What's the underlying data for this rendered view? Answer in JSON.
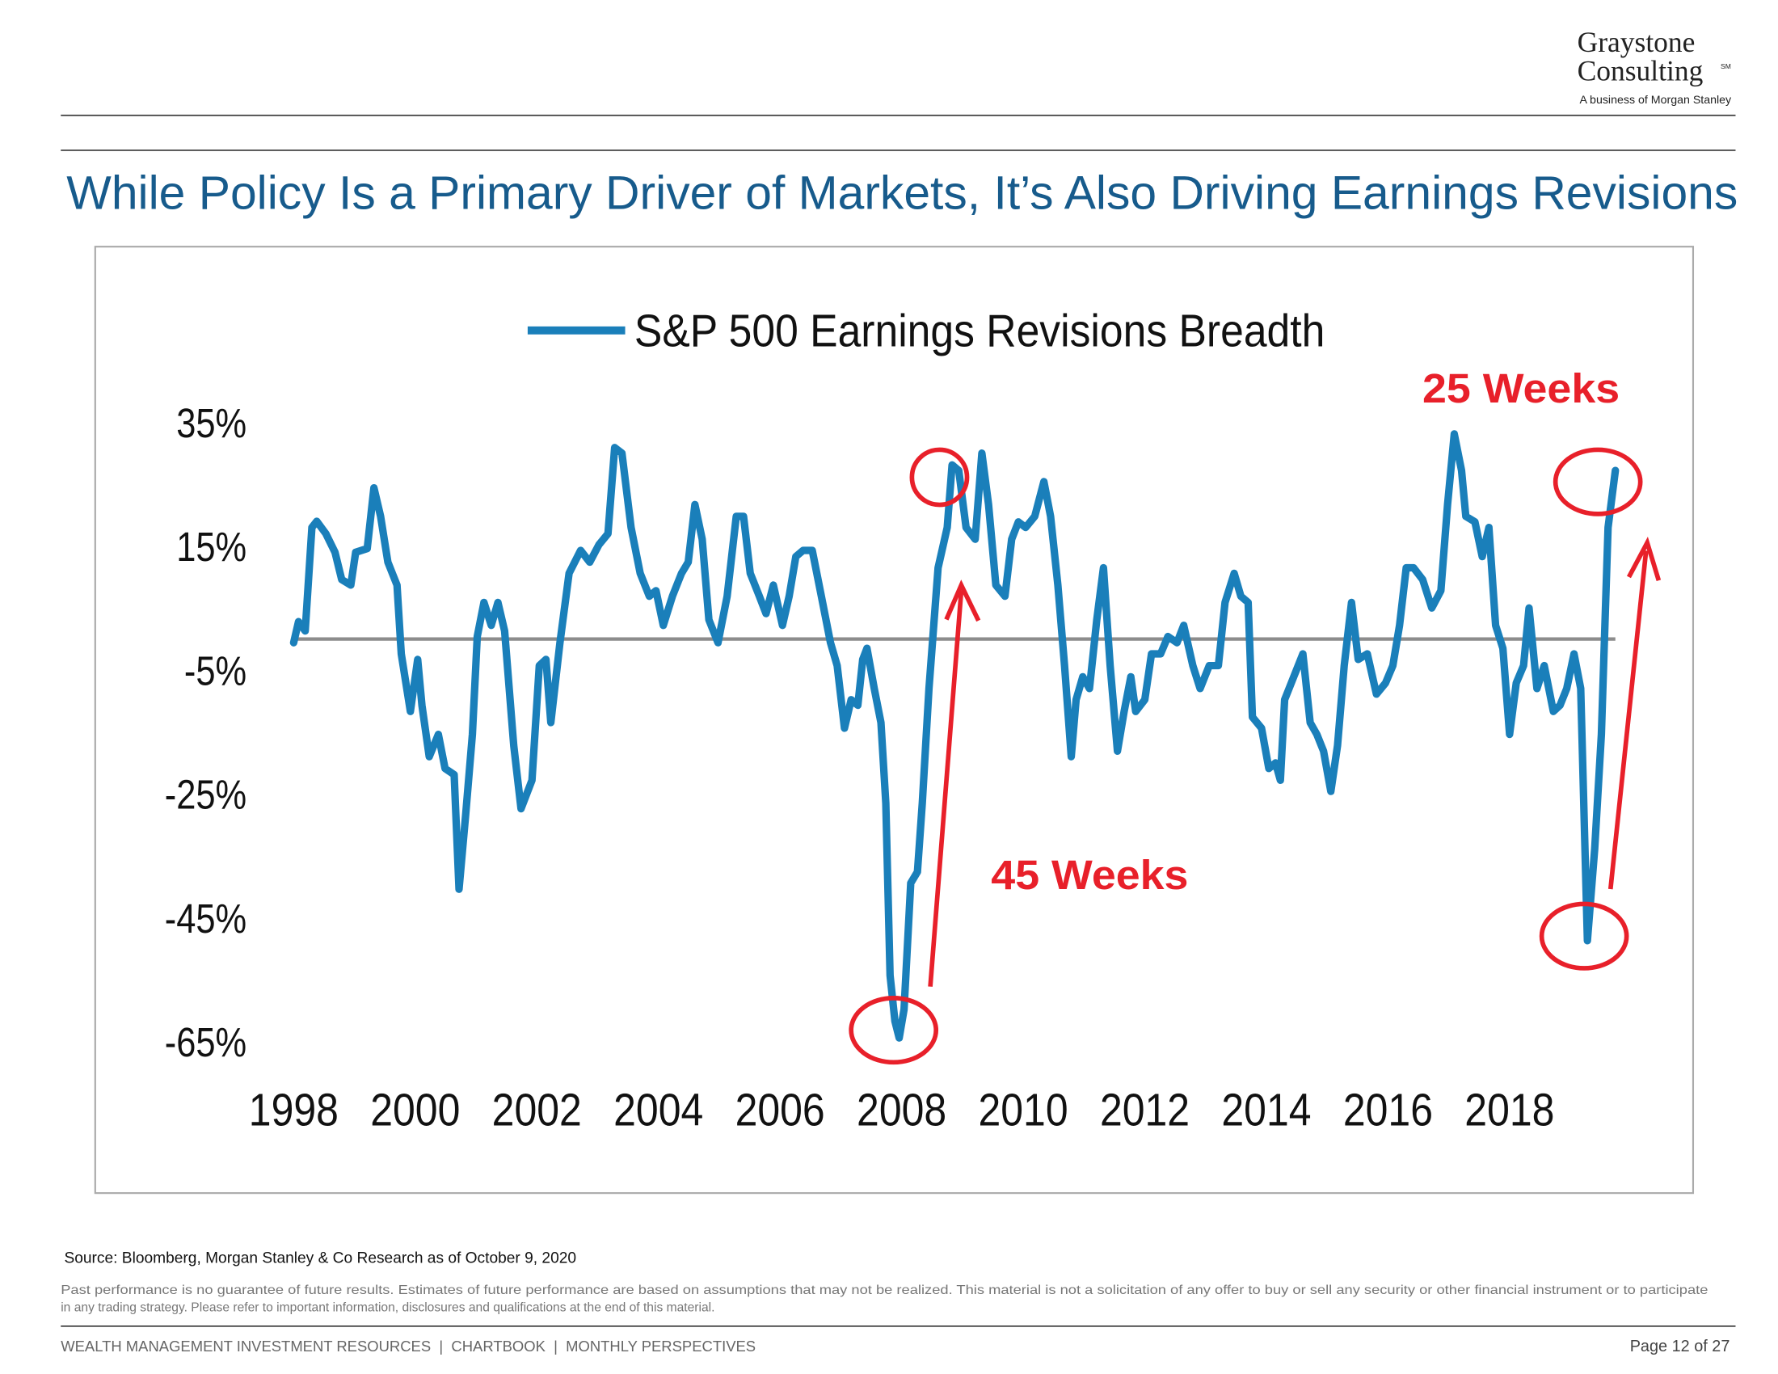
{
  "header": {
    "logo_line1": "Graystone",
    "logo_line2": "Consulting",
    "logo_mark": "SM",
    "logo_tagline": "A business of Morgan Stanley"
  },
  "title": "While Policy Is a Primary Driver of Markets, It’s Also Driving Earnings Revisions",
  "chart_data": {
    "type": "line",
    "series": [
      {
        "name": "S&P 500 Earnings Revisions Breadth",
        "color": "#1a7fba",
        "values": [
          -0.6,
          2.8,
          1.3,
          18,
          19,
          17,
          14,
          9.6,
          8.7,
          14,
          14.6,
          24.4,
          19.8,
          12.4,
          8.7,
          -2.4,
          -11.7,
          -3.3,
          -10.7,
          -19,
          -15.4,
          -20.9,
          -21.9,
          -40.4,
          -28.3,
          -15.4,
          0.4,
          5.9,
          2.2,
          5.9,
          1.3,
          -17.2,
          -27.4,
          -22.8,
          -4.3,
          -3.3,
          -13.5,
          -0.6,
          10.6,
          14.3,
          12.4,
          15.2,
          17,
          30.9,
          30,
          18,
          10.6,
          6.9,
          7.8,
          2.2,
          6.9,
          10.6,
          12.4,
          21.7,
          16.1,
          3.1,
          -0.6,
          6.9,
          19.8,
          19.8,
          10.6,
          6.9,
          4.1,
          8.7,
          2.2,
          6.9,
          13.3,
          14.3,
          14.3,
          6.9,
          -0.6,
          -4.3,
          -14.4,
          -9.8,
          -10.7,
          -3.3,
          -1.5,
          -8,
          -13.5,
          -26.5,
          -54.3,
          -61.7,
          -64.4,
          -59.8,
          -39.4,
          -37.6,
          -26.5,
          -8,
          11.5,
          18,
          28.1,
          27.2,
          18,
          16.1,
          30,
          21.7,
          8.7,
          6.9,
          16.1,
          18.9,
          18,
          19.8,
          25.4,
          19.8,
          8.7,
          -4.3,
          -19,
          -9.8,
          -6.1,
          -8,
          3.1,
          11.5,
          -4.3,
          -18.1,
          -11.7,
          -6.1,
          -11.7,
          -9.8,
          -2.4,
          -2.4,
          0.4,
          -0.6,
          2.2,
          -4.3,
          -8,
          -4.3,
          -4.3,
          5.9,
          10.6,
          6.9,
          5.9,
          -12.6,
          -14.4,
          -20.9,
          -20,
          -22.8,
          -9.8,
          -6.1,
          -2.4,
          -13.5,
          -15.4,
          -18.1,
          -24.6,
          -17.2,
          -4.3,
          5.9,
          -3.3,
          -2.4,
          -8.9,
          -7.1,
          -4.3,
          2.2,
          11.5,
          11.5,
          9.6,
          5,
          7.8,
          21.7,
          33.1,
          27.2,
          19.8,
          18.9,
          13.3,
          18,
          2.2,
          -1.5,
          -15.4,
          -7.1,
          -4.3,
          5,
          -8,
          -4.3,
          -11.7,
          -10.7,
          -8,
          -2.4,
          -8,
          -48.7,
          -33.9,
          -15.4,
          18,
          27.2
        ]
      }
    ],
    "x": [
      1998.0,
      1998.08,
      1998.19,
      1998.3,
      1998.38,
      1998.53,
      1998.68,
      1998.79,
      1998.94,
      1999.02,
      1999.21,
      1999.32,
      1999.43,
      1999.55,
      1999.7,
      1999.77,
      1999.92,
      2000.04,
      2000.11,
      2000.23,
      2000.38,
      2000.49,
      2000.64,
      2000.72,
      2000.83,
      2000.94,
      2001.02,
      2001.13,
      2001.25,
      2001.36,
      2001.47,
      2001.62,
      2001.74,
      2001.92,
      2002.04,
      2002.15,
      2002.23,
      2002.38,
      2002.53,
      2002.72,
      2002.87,
      2003.02,
      2003.17,
      2003.28,
      2003.4,
      2003.55,
      2003.7,
      2003.85,
      2003.96,
      2004.08,
      2004.23,
      2004.38,
      2004.49,
      2004.6,
      2004.72,
      2004.83,
      2004.98,
      2005.13,
      2005.28,
      2005.4,
      2005.51,
      2005.66,
      2005.77,
      2005.89,
      2006.04,
      2006.15,
      2006.26,
      2006.38,
      2006.53,
      2006.68,
      2006.83,
      2006.94,
      2007.06,
      2007.17,
      2007.28,
      2007.36,
      2007.43,
      2007.55,
      2007.66,
      2007.74,
      2007.81,
      2007.89,
      2007.96,
      2008.04,
      2008.15,
      2008.26,
      2008.34,
      2008.45,
      2008.6,
      2008.75,
      2008.83,
      2008.94,
      2009.06,
      2009.21,
      2009.32,
      2009.43,
      2009.55,
      2009.7,
      2009.81,
      2009.92,
      2010.04,
      2010.19,
      2010.34,
      2010.45,
      2010.57,
      2010.68,
      2010.79,
      2010.87,
      2010.98,
      2011.09,
      2011.21,
      2011.32,
      2011.43,
      2011.55,
      2011.66,
      2011.77,
      2011.85,
      2012.0,
      2012.11,
      2012.26,
      2012.38,
      2012.53,
      2012.64,
      2012.79,
      2012.91,
      2013.06,
      2013.21,
      2013.32,
      2013.47,
      2013.58,
      2013.7,
      2013.77,
      2013.92,
      2014.04,
      2014.15,
      2014.23,
      2014.3,
      2014.45,
      2014.6,
      2014.72,
      2014.83,
      2014.94,
      2015.06,
      2015.17,
      2015.28,
      2015.4,
      2015.51,
      2015.66,
      2015.81,
      2015.96,
      2016.08,
      2016.19,
      2016.3,
      2016.42,
      2016.57,
      2016.72,
      2016.87,
      2016.98,
      2017.09,
      2017.21,
      2017.28,
      2017.43,
      2017.55,
      2017.66,
      2017.77,
      2017.89,
      2018.0,
      2018.11,
      2018.23,
      2018.32,
      2018.45,
      2018.57,
      2018.72,
      2018.83,
      2018.94,
      2019.06,
      2019.17,
      2019.28,
      2019.4,
      2019.51,
      2019.62,
      2019.74
    ],
    "xlim": [
      1998,
      2020
    ],
    "xticks": [
      1998,
      2000,
      2002,
      2004,
      2006,
      2008,
      2010,
      2012,
      2014,
      2016,
      2018
    ],
    "ylim": [
      -65,
      35
    ],
    "yticks": [
      {
        "value": -65,
        "label": "-65%"
      },
      {
        "value": -45,
        "label": "-45%"
      },
      {
        "value": -25,
        "label": "-25%"
      },
      {
        "value": -5,
        "label": "-5%"
      },
      {
        "value": 15,
        "label": "15%"
      },
      {
        "value": 35,
        "label": "35%"
      }
    ],
    "reference_line": 0,
    "reference_color": "#8c8c8c",
    "annotations": [
      "25 Weeks",
      "45 Weeks"
    ]
  },
  "source": "Source: Bloomberg, Morgan Stanley & Co Research as of October 9, 2020",
  "disclaimer": [
    "Past performance is no guarantee of future results. Estimates of future performance are based on assumptions that may not be realized. This material is not a solicitation of any offer to buy or sell any security or other financial instrument or to participate",
    "in any trading strategy. Please refer to important information, disclosures and qualifications at the end of this material."
  ],
  "footer": {
    "left": "WEALTH MANAGEMENT INVESTMENT RESOURCES  |  CHARTBOOK  |  MONTHLY PERSPECTIVES",
    "page": "Page 12 of 27"
  }
}
